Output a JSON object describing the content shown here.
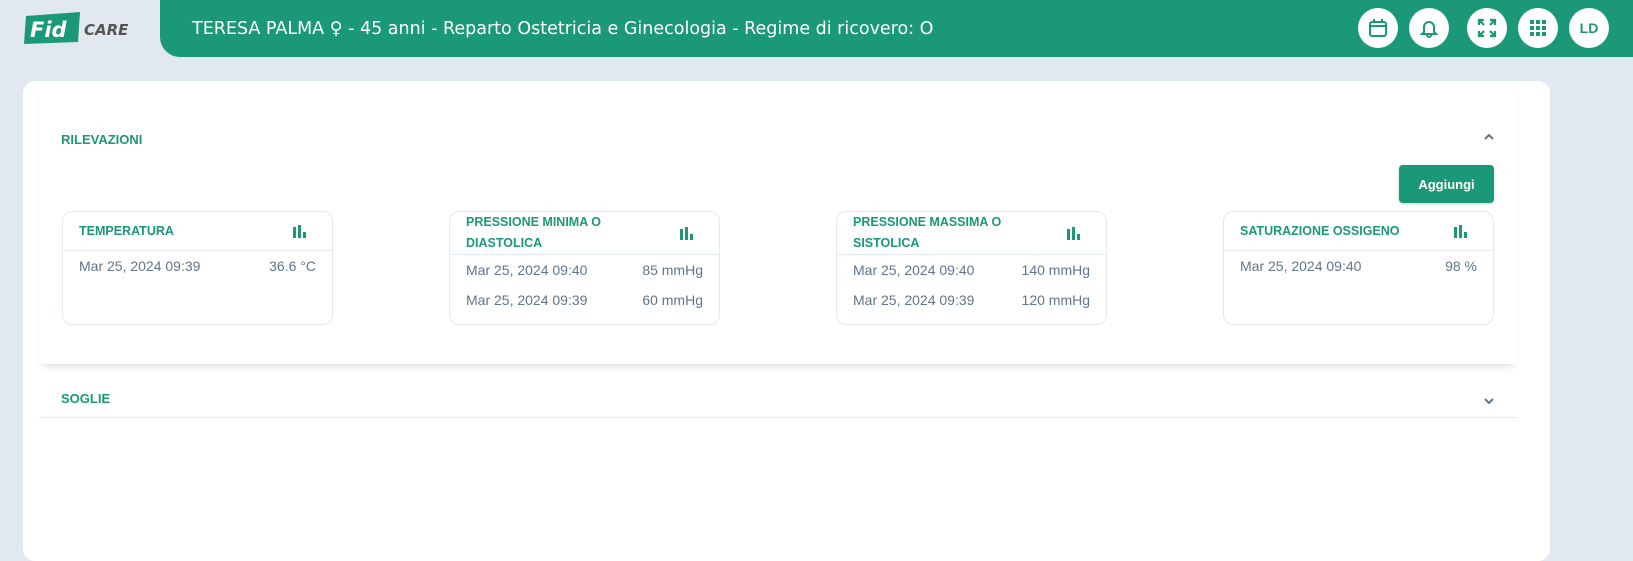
{
  "logo": {
    "text": "FID CARE"
  },
  "header": {
    "title": "TERESA PALMA ♀ - 45 anni - Reparto Ostetricia e Ginecologia - Regime di ricovero: O",
    "user_initials": "LD"
  },
  "colors": {
    "brand": "#1b9877",
    "background": "#e2e8f0"
  },
  "rilevazioni": {
    "title": "RILEVAZIONI",
    "add_label": "Aggiungi",
    "cards": [
      {
        "title": "TEMPERATURA",
        "rows": [
          {
            "date": "Mar 25, 2024 09:39",
            "value": "36.6 °C"
          }
        ]
      },
      {
        "title": "PRESSIONE MINIMA O DIASTOLICA",
        "rows": [
          {
            "date": "Mar 25, 2024 09:40",
            "value": "85 mmHg"
          },
          {
            "date": "Mar 25, 2024 09:39",
            "value": "60 mmHg"
          }
        ]
      },
      {
        "title": "PRESSIONE MASSIMA O SISTOLICA",
        "rows": [
          {
            "date": "Mar 25, 2024 09:40",
            "value": "140 mmHg"
          },
          {
            "date": "Mar 25, 2024 09:39",
            "value": "120 mmHg"
          }
        ]
      },
      {
        "title": "SATURAZIONE OSSIGENO",
        "rows": [
          {
            "date": "Mar 25, 2024 09:40",
            "value": "98 %"
          }
        ]
      }
    ]
  },
  "soglie": {
    "title": "SOGLIE"
  }
}
